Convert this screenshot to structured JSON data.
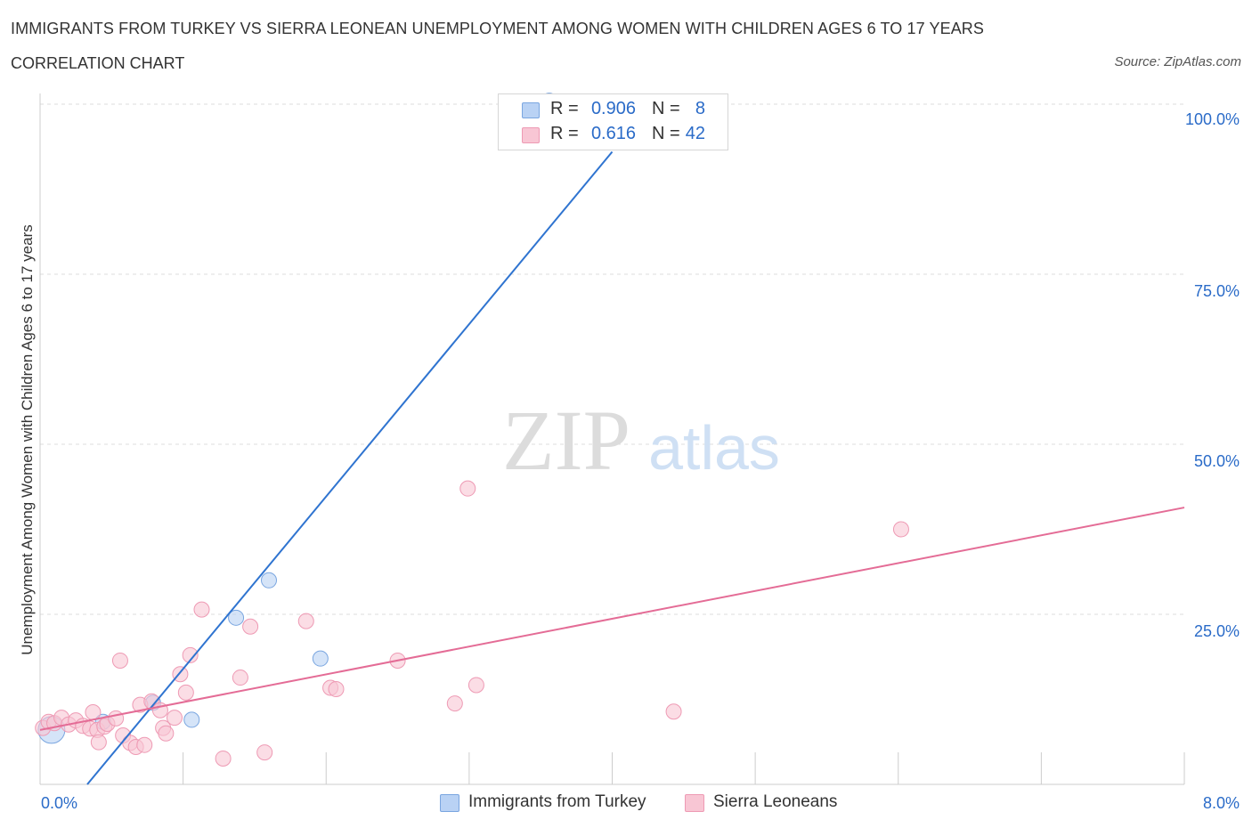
{
  "title": "IMMIGRANTS FROM TURKEY VS SIERRA LEONEAN UNEMPLOYMENT AMONG WOMEN WITH CHILDREN AGES 6 TO 17 YEARS",
  "subtitle": "CORRELATION CHART",
  "source": "Source: ZipAtlas.com",
  "watermark": {
    "zip": "ZIP",
    "atlas": "atlas"
  },
  "legend_top": [
    {
      "r_label": "R =",
      "r_value": "0.906",
      "n_label": "N =",
      "n_value": "8"
    },
    {
      "r_label": "R =",
      "r_value": "0.616",
      "n_label": "N =",
      "n_value": "42"
    }
  ],
  "legend_bottom": [
    {
      "label": "Immigrants from Turkey"
    },
    {
      "label": "Sierra Leoneans"
    }
  ],
  "colors": {
    "blue_fill": "#b9d2f4",
    "blue_stroke": "#7aa6e0",
    "blue_line": "#2f74d0",
    "pink_fill": "#f8c6d4",
    "pink_stroke": "#ee9ab4",
    "pink_line": "#e46c96",
    "grid": "#dddddd",
    "tick_text": "#2a6bc8"
  },
  "chart_data": {
    "type": "scatter",
    "title": "IMMIGRANTS FROM TURKEY VS SIERRA LEONEAN UNEMPLOYMENT AMONG WOMEN WITH CHILDREN AGES 6 TO 17 YEARS",
    "xlabel": "",
    "ylabel": "Unemployment Among Women with Children Ages 6 to 17 years",
    "xlim": [
      0,
      8
    ],
    "ylim": [
      0,
      100
    ],
    "x_tick_labels": [
      {
        "value": 0,
        "label": "0.0%"
      },
      {
        "value": 8,
        "label": "8.0%"
      }
    ],
    "y_tick_labels": [
      {
        "value": 100,
        "label": "100.0%"
      },
      {
        "value": 75,
        "label": "75.0%"
      },
      {
        "value": 50,
        "label": "50.0%"
      },
      {
        "value": 25,
        "label": "25.0%"
      }
    ],
    "series": [
      {
        "name": "Immigrants from Turkey",
        "color_key": "blue",
        "points": [
          {
            "x": 0.08,
            "y": 8.0,
            "size": "large"
          },
          {
            "x": 0.44,
            "y": 9.2
          },
          {
            "x": 0.79,
            "y": 12.0
          },
          {
            "x": 1.06,
            "y": 9.5
          },
          {
            "x": 1.37,
            "y": 24.5
          },
          {
            "x": 1.6,
            "y": 30.0
          },
          {
            "x": 1.96,
            "y": 18.5
          },
          {
            "x": 3.56,
            "y": 100.5
          }
        ],
        "trend": {
          "x0": 0.33,
          "y0": 0.0,
          "x1": 4.0,
          "y1": 93.0
        }
      },
      {
        "name": "Sierra Leoneans",
        "color_key": "pink",
        "points": [
          {
            "x": 0.02,
            "y": 8.3
          },
          {
            "x": 0.06,
            "y": 9.2
          },
          {
            "x": 0.1,
            "y": 9.0
          },
          {
            "x": 0.15,
            "y": 9.8
          },
          {
            "x": 0.2,
            "y": 8.8
          },
          {
            "x": 0.25,
            "y": 9.4
          },
          {
            "x": 0.3,
            "y": 8.6
          },
          {
            "x": 0.35,
            "y": 8.2
          },
          {
            "x": 0.4,
            "y": 8.0
          },
          {
            "x": 0.45,
            "y": 8.5
          },
          {
            "x": 0.37,
            "y": 10.6
          },
          {
            "x": 0.47,
            "y": 8.9
          },
          {
            "x": 0.41,
            "y": 6.2
          },
          {
            "x": 0.53,
            "y": 9.7
          },
          {
            "x": 0.58,
            "y": 7.2
          },
          {
            "x": 0.56,
            "y": 18.2
          },
          {
            "x": 0.63,
            "y": 6.1
          },
          {
            "x": 0.7,
            "y": 11.7
          },
          {
            "x": 0.67,
            "y": 5.5
          },
          {
            "x": 0.73,
            "y": 5.8
          },
          {
            "x": 0.78,
            "y": 12.2
          },
          {
            "x": 0.84,
            "y": 10.9
          },
          {
            "x": 0.86,
            "y": 8.3
          },
          {
            "x": 0.88,
            "y": 7.5
          },
          {
            "x": 0.94,
            "y": 9.8
          },
          {
            "x": 0.98,
            "y": 16.2
          },
          {
            "x": 1.02,
            "y": 13.5
          },
          {
            "x": 1.05,
            "y": 19.0
          },
          {
            "x": 1.13,
            "y": 25.7
          },
          {
            "x": 1.28,
            "y": 3.8
          },
          {
            "x": 1.4,
            "y": 15.7
          },
          {
            "x": 1.47,
            "y": 23.2
          },
          {
            "x": 1.57,
            "y": 4.7
          },
          {
            "x": 1.86,
            "y": 24.0
          },
          {
            "x": 2.03,
            "y": 14.2
          },
          {
            "x": 2.07,
            "y": 14.0
          },
          {
            "x": 2.5,
            "y": 18.2
          },
          {
            "x": 2.9,
            "y": 11.9
          },
          {
            "x": 2.99,
            "y": 43.5
          },
          {
            "x": 3.05,
            "y": 14.6
          },
          {
            "x": 4.43,
            "y": 10.7
          },
          {
            "x": 6.02,
            "y": 37.5
          }
        ],
        "trend": {
          "x0": 0.0,
          "y0": 8.0,
          "x1": 8.0,
          "y1": 40.7
        }
      }
    ]
  }
}
